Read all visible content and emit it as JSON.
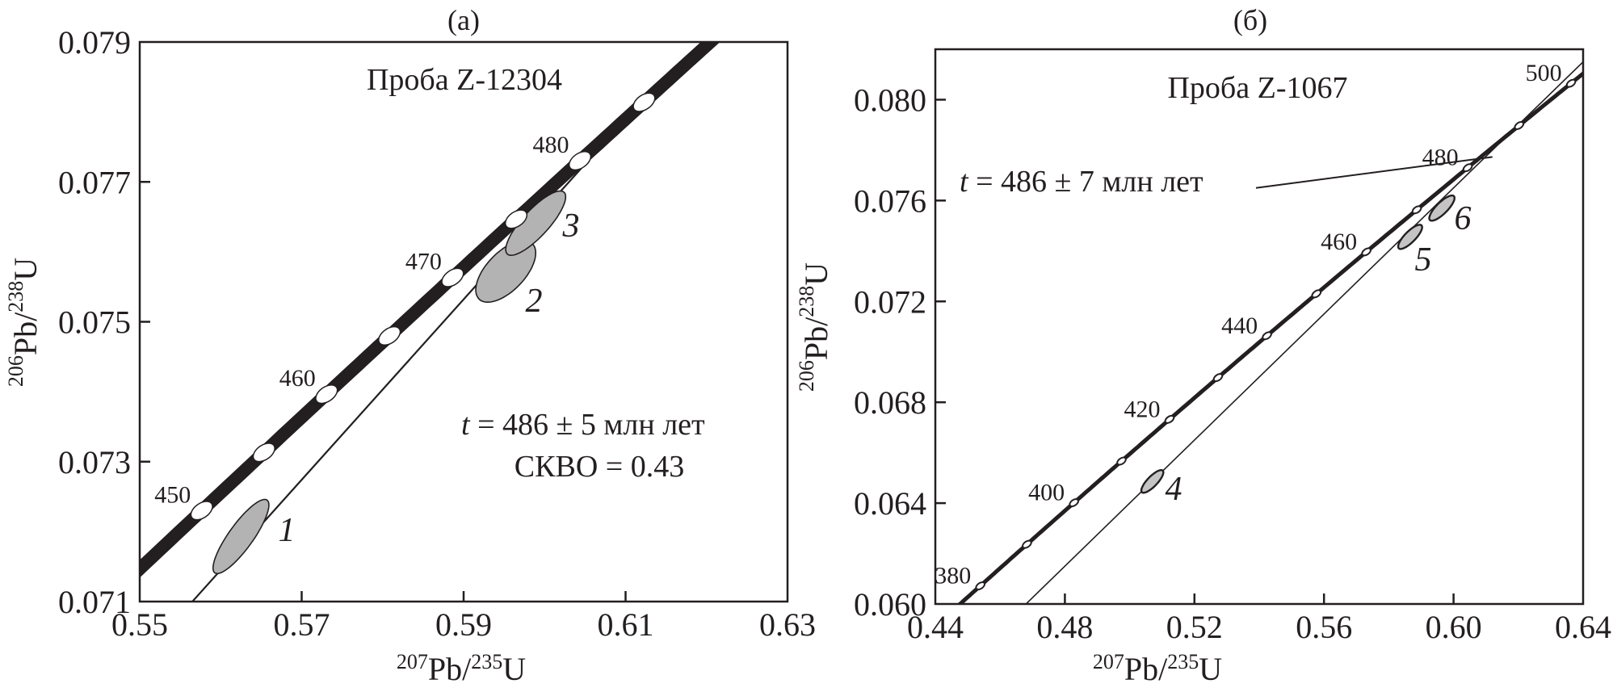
{
  "chart_data": [
    {
      "type": "scatter",
      "panel_label": "(а)",
      "title": "Проба Z-12304",
      "xlabel": {
        "sup1": "207",
        "mid": "Pb/",
        "sup2": "235",
        "end": "U"
      },
      "ylabel": {
        "sup1": "206",
        "mid": "Pb/",
        "sup2": "238",
        "end": "U"
      },
      "xlim": [
        0.55,
        0.63
      ],
      "ylim": [
        0.071,
        0.079
      ],
      "xticks": [
        "0.55",
        "0.57",
        "0.59",
        "0.61",
        "0.63"
      ],
      "yticks": [
        "0.071",
        "0.073",
        "0.075",
        "0.077",
        "0.079"
      ],
      "grid": false,
      "concordia": {
        "style": "error-band",
        "age_markers_ma": [
          450,
          455,
          460,
          465,
          470,
          475,
          480,
          485
        ],
        "labeled_ages_ma": [
          "450",
          "460",
          "470",
          "480"
        ]
      },
      "discordia": [
        [
          0.5565,
          0.071
        ],
        [
          0.61,
          0.0779
        ]
      ],
      "ellipses": [
        {
          "label": "1",
          "x": 0.5625,
          "y": 0.07193,
          "sx": 0.00345,
          "sy": 0.00053,
          "rho": 0.85
        },
        {
          "label": "2",
          "x": 0.5952,
          "y": 0.07572,
          "sx": 0.0037,
          "sy": 0.00044,
          "rho": 0.6
        },
        {
          "label": "3",
          "x": 0.5989,
          "y": 0.07641,
          "sx": 0.0037,
          "sy": 0.00046,
          "rho": 0.82
        }
      ],
      "annotations": {
        "age_var": "t",
        "age_text": " = 486 ± 5 млн лет",
        "mswd": "СКВО = 0.43"
      },
      "colors": {
        "line": "#231f20",
        "ellipse_fill": "#b3b3b3",
        "marker_fill": "#ffffff"
      }
    },
    {
      "type": "scatter",
      "panel_label": "(б)",
      "title": "Проба Z-1067",
      "xlabel": {
        "sup1": "207",
        "mid": "Pb/",
        "sup2": "235",
        "end": "U"
      },
      "ylabel": {
        "sup1": "206",
        "mid": "Pb/",
        "sup2": "238",
        "end": "U"
      },
      "xlim": [
        0.44,
        0.64
      ],
      "ylim": [
        0.06,
        0.082
      ],
      "xticks": [
        "0.44",
        "0.48",
        "0.52",
        "0.56",
        "0.60",
        "0.64"
      ],
      "yticks": [
        "0.060",
        "0.064",
        "0.068",
        "0.072",
        "0.076",
        "0.080"
      ],
      "grid": false,
      "concordia": {
        "style": "line",
        "age_markers_ma": [
          380,
          390,
          400,
          410,
          420,
          430,
          440,
          450,
          460,
          470,
          480,
          490,
          500
        ],
        "labeled_ages_ma": [
          "380",
          "400",
          "420",
          "440",
          "460",
          "480",
          "500"
        ]
      },
      "discordia": [
        [
          0.468,
          0.06
        ],
        [
          0.64,
          0.0815
        ]
      ],
      "ellipses": [
        {
          "label": "4",
          "x": 0.507,
          "y": 0.06486,
          "sx": 0.0034,
          "sy": 0.00045,
          "rho": 0.8
        },
        {
          "label": "5",
          "x": 0.5866,
          "y": 0.07456,
          "sx": 0.0037,
          "sy": 0.00048,
          "rho": 0.8
        },
        {
          "label": "6",
          "x": 0.5964,
          "y": 0.0757,
          "sx": 0.0039,
          "sy": 0.0005,
          "rho": 0.8
        }
      ],
      "annotations": {
        "age_var": "t",
        "age_text": " = 486 ± 7 млн лет",
        "pointer_from": [
          0.539,
          0.0765
        ],
        "pointer_to": [
          0.612,
          0.07773
        ]
      },
      "colors": {
        "line": "#231f20",
        "ellipse_fill": "#c4c4c4",
        "marker_fill": "#ffffff"
      }
    }
  ]
}
